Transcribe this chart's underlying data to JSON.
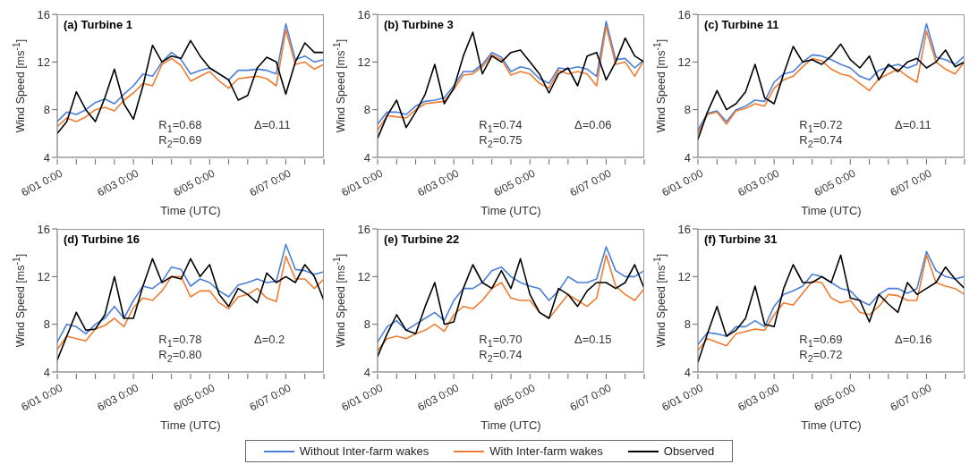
{
  "chart_data": [
    {
      "type": "line",
      "title": "(a) Turbine 1",
      "xlabel": "Time (UTC)",
      "ylabel": "Wind Speed [ms$^{-1}$]",
      "xlim": [
        "--06-01T00:00",
        "--06-08T00:00"
      ],
      "xticks": [
        {
          "value": "--06-01T00:00",
          "label": "6/01 0:00"
        },
        {
          "value": "--06-01T12:00",
          "label": null
        },
        {
          "value": "--06-02T00:00",
          "label": null
        },
        {
          "value": "--06-02T12:00",
          "label": null
        },
        {
          "value": "--06-03T00:00",
          "label": "6/03 0:00"
        },
        {
          "value": "--06-03T12:00",
          "label": null
        },
        {
          "value": "--06-04T00:00",
          "label": null
        },
        {
          "value": "--06-04T12:00",
          "label": null
        },
        {
          "value": "--06-05T00:00",
          "label": "6/05 0:00"
        },
        {
          "value": "--06-05T12:00",
          "label": null
        },
        {
          "value": "--06-06T00:00",
          "label": null
        },
        {
          "value": "--06-06T12:00",
          "label": null
        },
        {
          "value": "--06-07T00:00",
          "label": "6/07 0:00"
        },
        {
          "value": "--06-07T12:00",
          "label": null
        },
        {
          "value": "--06-08T00:00",
          "label": null
        }
      ],
      "ylim": [
        4,
        16
      ],
      "yticks": [
        4,
        8,
        12,
        16
      ],
      "annotations": [
        "R$_{1}$=0.68",
        "R$_{2}$=0.69",
        "Δ=0.11"
      ],
      "x": [
        "--06-01T00:00",
        "--06-01T06:00",
        "--06-01T12:00",
        "--06-01T18:00",
        "--06-02T00:00",
        "--06-02T06:00",
        "--06-02T12:00",
        "--06-02T18:00",
        "--06-03T00:00",
        "--06-03T06:00",
        "--06-03T12:00",
        "--06-03T18:00",
        "--06-04T00:00",
        "--06-04T06:00",
        "--06-04T12:00",
        "--06-04T18:00",
        "--06-05T00:00",
        "--06-05T06:00",
        "--06-05T12:00",
        "--06-05T18:00",
        "--06-06T00:00",
        "--06-06T06:00",
        "--06-06T12:00",
        "--06-06T18:00",
        "--06-07T00:00",
        "--06-07T06:00",
        "--06-07T12:00",
        "--06-07T18:00",
        "--06-08T00:00"
      ],
      "series": [
        {
          "color": "#4a7fd8",
          "values": [
            7.0,
            7.8,
            7.6,
            8.0,
            8.6,
            8.9,
            8.5,
            9.3,
            10.0,
            11.0,
            10.8,
            12.0,
            12.8,
            12.2,
            11.0,
            11.3,
            11.5,
            11.0,
            10.5,
            11.3,
            11.3,
            11.4,
            11.3,
            11.0,
            15.2,
            12.2,
            12.5,
            12.0,
            12.2
          ]
        },
        {
          "color": "#ee7d31",
          "values": [
            6.6,
            7.3,
            7.0,
            7.4,
            8.0,
            8.2,
            7.9,
            8.8,
            9.4,
            10.2,
            10.0,
            11.8,
            12.3,
            11.7,
            10.4,
            10.8,
            11.2,
            10.4,
            9.8,
            10.6,
            10.7,
            10.8,
            10.6,
            10.0,
            14.7,
            11.8,
            12.0,
            11.4,
            11.8
          ]
        },
        {
          "color": "#000000",
          "values": [
            6.0,
            7.0,
            9.5,
            8.0,
            7.0,
            9.0,
            11.4,
            8.5,
            7.2,
            10.0,
            13.4,
            12.0,
            12.5,
            12.3,
            13.8,
            12.5,
            11.5,
            11.0,
            10.5,
            8.8,
            9.2,
            11.5,
            12.4,
            12.0,
            9.3,
            12.0,
            13.6,
            12.8,
            12.8
          ]
        }
      ]
    },
    {
      "type": "line",
      "title": "(b) Turbine 3",
      "xlabel": "Time (UTC)",
      "ylabel": "Wind Speed [ms$^{-1}$]",
      "xlim": [
        "--06-01T00:00",
        "--06-08T00:00"
      ],
      "xticks": [
        {
          "value": "--06-01T00:00",
          "label": "6/01 0:00"
        },
        {
          "value": "--06-01T12:00",
          "label": null
        },
        {
          "value": "--06-02T00:00",
          "label": null
        },
        {
          "value": "--06-02T12:00",
          "label": null
        },
        {
          "value": "--06-03T00:00",
          "label": "6/03 0:00"
        },
        {
          "value": "--06-03T12:00",
          "label": null
        },
        {
          "value": "--06-04T00:00",
          "label": null
        },
        {
          "value": "--06-04T12:00",
          "label": null
        },
        {
          "value": "--06-05T00:00",
          "label": "6/05 0:00"
        },
        {
          "value": "--06-05T12:00",
          "label": null
        },
        {
          "value": "--06-06T00:00",
          "label": null
        },
        {
          "value": "--06-06T12:00",
          "label": null
        },
        {
          "value": "--06-07T00:00",
          "label": "6/07 0:00"
        },
        {
          "value": "--06-07T12:00",
          "label": null
        },
        {
          "value": "--06-08T00:00",
          "label": null
        }
      ],
      "ylim": [
        4,
        16
      ],
      "yticks": [
        4,
        8,
        12,
        16
      ],
      "annotations": [
        "R$_{1}$=0.74",
        "R$_{2}$=0.75",
        "Δ=0.06"
      ],
      "x": [
        "--06-01T00:00",
        "--06-01T06:00",
        "--06-01T12:00",
        "--06-01T18:00",
        "--06-02T00:00",
        "--06-02T06:00",
        "--06-02T12:00",
        "--06-02T18:00",
        "--06-03T00:00",
        "--06-03T06:00",
        "--06-03T12:00",
        "--06-03T18:00",
        "--06-04T00:00",
        "--06-04T06:00",
        "--06-04T12:00",
        "--06-04T18:00",
        "--06-05T00:00",
        "--06-05T06:00",
        "--06-05T12:00",
        "--06-05T18:00",
        "--06-06T00:00",
        "--06-06T06:00",
        "--06-06T12:00",
        "--06-06T18:00",
        "--06-07T00:00",
        "--06-07T06:00",
        "--06-07T12:00",
        "--06-07T18:00",
        "--06-08T00:00"
      ],
      "series": [
        {
          "color": "#4a7fd8",
          "values": [
            6.8,
            7.8,
            7.8,
            7.6,
            8.3,
            8.7,
            8.8,
            9.0,
            10.0,
            11.2,
            11.2,
            11.8,
            12.8,
            12.4,
            11.2,
            11.6,
            11.4,
            10.6,
            10.2,
            11.5,
            11.4,
            11.6,
            11.4,
            10.8,
            15.4,
            12.2,
            12.3,
            11.5,
            12.2
          ]
        },
        {
          "color": "#ee7d31",
          "values": [
            6.3,
            7.5,
            7.4,
            7.3,
            8.0,
            8.5,
            8.6,
            8.7,
            9.7,
            10.9,
            11.0,
            11.6,
            12.6,
            12.2,
            10.9,
            11.2,
            11.0,
            10.2,
            9.8,
            11.3,
            11.0,
            11.2,
            11.0,
            10.0,
            15.0,
            11.8,
            12.0,
            10.8,
            12.2
          ]
        },
        {
          "color": "#000000",
          "values": [
            5.6,
            7.5,
            8.8,
            6.5,
            7.8,
            9.3,
            11.8,
            8.5,
            9.8,
            12.5,
            14.5,
            11.0,
            12.5,
            12.0,
            12.8,
            13.0,
            12.0,
            11.0,
            9.4,
            11.0,
            11.5,
            10.0,
            12.5,
            12.8,
            10.5,
            12.0,
            14.0,
            12.5,
            12.0
          ]
        }
      ]
    },
    {
      "type": "line",
      "title": "(c) Turbine 11",
      "xlabel": "Time (UTC)",
      "ylabel": "Wind Speed [ms$^{-1}$]",
      "xlim": [
        "--06-01T00:00",
        "--06-08T00:00"
      ],
      "xticks": [
        {
          "value": "--06-01T00:00",
          "label": "6/01 0:00"
        },
        {
          "value": "--06-01T12:00",
          "label": null
        },
        {
          "value": "--06-02T00:00",
          "label": null
        },
        {
          "value": "--06-02T12:00",
          "label": null
        },
        {
          "value": "--06-03T00:00",
          "label": "6/03 0:00"
        },
        {
          "value": "--06-03T12:00",
          "label": null
        },
        {
          "value": "--06-04T00:00",
          "label": null
        },
        {
          "value": "--06-04T12:00",
          "label": null
        },
        {
          "value": "--06-05T00:00",
          "label": "6/05 0:00"
        },
        {
          "value": "--06-05T12:00",
          "label": null
        },
        {
          "value": "--06-06T00:00",
          "label": null
        },
        {
          "value": "--06-06T12:00",
          "label": null
        },
        {
          "value": "--06-07T00:00",
          "label": "6/07 0:00"
        },
        {
          "value": "--06-07T12:00",
          "label": null
        },
        {
          "value": "--06-08T00:00",
          "label": null
        }
      ],
      "ylim": [
        4,
        16
      ],
      "yticks": [
        4,
        8,
        12,
        16
      ],
      "annotations": [
        "R$_{1}$=0.72",
        "R$_{2}$=0.74",
        "Δ=0.11"
      ],
      "x": [
        "--06-01T00:00",
        "--06-01T06:00",
        "--06-01T12:00",
        "--06-01T18:00",
        "--06-02T00:00",
        "--06-02T06:00",
        "--06-02T12:00",
        "--06-02T18:00",
        "--06-03T00:00",
        "--06-03T06:00",
        "--06-03T12:00",
        "--06-03T18:00",
        "--06-04T00:00",
        "--06-04T06:00",
        "--06-04T12:00",
        "--06-04T18:00",
        "--06-05T00:00",
        "--06-05T06:00",
        "--06-05T12:00",
        "--06-05T18:00",
        "--06-06T00:00",
        "--06-06T06:00",
        "--06-06T12:00",
        "--06-06T18:00",
        "--06-07T00:00",
        "--06-07T06:00",
        "--06-07T12:00",
        "--06-07T18:00",
        "--06-08T00:00"
      ],
      "series": [
        {
          "color": "#4a7fd8",
          "values": [
            6.3,
            7.7,
            7.9,
            7.0,
            8.0,
            8.3,
            8.8,
            8.7,
            10.3,
            11.0,
            11.2,
            12.0,
            12.6,
            12.5,
            12.2,
            11.8,
            11.5,
            10.8,
            10.5,
            11.3,
            11.6,
            11.8,
            11.5,
            11.8,
            15.2,
            12.4,
            12.2,
            11.8,
            12.5
          ]
        },
        {
          "color": "#ee7d31",
          "values": [
            6.0,
            7.6,
            7.8,
            6.8,
            7.9,
            8.1,
            8.5,
            8.3,
            9.8,
            10.5,
            10.8,
            11.6,
            12.3,
            12.1,
            11.4,
            11.0,
            10.8,
            10.2,
            9.6,
            10.6,
            11.0,
            11.4,
            10.8,
            10.3,
            14.6,
            12.0,
            11.4,
            11.0,
            12.0
          ]
        },
        {
          "color": "#000000",
          "values": [
            5.5,
            7.8,
            9.6,
            8.0,
            8.5,
            9.5,
            11.8,
            9.0,
            8.5,
            11.0,
            13.3,
            12.0,
            12.2,
            11.8,
            12.5,
            13.5,
            12.2,
            11.5,
            12.5,
            10.5,
            11.8,
            11.2,
            12.0,
            12.3,
            11.5,
            12.0,
            13.0,
            11.6,
            12.0
          ]
        }
      ]
    },
    {
      "type": "line",
      "title": "(d) Turbine 16",
      "xlabel": "Time (UTC)",
      "ylabel": "Wind Speed [ms$^{-1}$]",
      "xlim": [
        "--06-01T00:00",
        "--06-08T00:00"
      ],
      "xticks": [
        {
          "value": "--06-01T00:00",
          "label": "6/01 0:00"
        },
        {
          "value": "--06-01T12:00",
          "label": null
        },
        {
          "value": "--06-02T00:00",
          "label": null
        },
        {
          "value": "--06-02T12:00",
          "label": null
        },
        {
          "value": "--06-03T00:00",
          "label": "6/03 0:00"
        },
        {
          "value": "--06-03T12:00",
          "label": null
        },
        {
          "value": "--06-04T00:00",
          "label": null
        },
        {
          "value": "--06-04T12:00",
          "label": null
        },
        {
          "value": "--06-05T00:00",
          "label": "6/05 0:00"
        },
        {
          "value": "--06-05T12:00",
          "label": null
        },
        {
          "value": "--06-06T00:00",
          "label": null
        },
        {
          "value": "--06-06T12:00",
          "label": null
        },
        {
          "value": "--06-07T00:00",
          "label": "6/07 0:00"
        },
        {
          "value": "--06-07T12:00",
          "label": null
        },
        {
          "value": "--06-08T00:00",
          "label": null
        }
      ],
      "ylim": [
        4,
        16
      ],
      "yticks": [
        4,
        8,
        12,
        16
      ],
      "annotations": [
        "R$_{1}$=0.78",
        "R$_{2}$=0.80",
        "Δ=0.2"
      ],
      "x": [
        "--06-01T00:00",
        "--06-01T06:00",
        "--06-01T12:00",
        "--06-01T18:00",
        "--06-02T00:00",
        "--06-02T06:00",
        "--06-02T12:00",
        "--06-02T18:00",
        "--06-03T00:00",
        "--06-03T06:00",
        "--06-03T12:00",
        "--06-03T18:00",
        "--06-04T00:00",
        "--06-04T06:00",
        "--06-04T12:00",
        "--06-04T18:00",
        "--06-05T00:00",
        "--06-05T06:00",
        "--06-05T12:00",
        "--06-05T18:00",
        "--06-06T00:00",
        "--06-06T06:00",
        "--06-06T12:00",
        "--06-06T18:00",
        "--06-07T00:00",
        "--06-07T06:00",
        "--06-07T12:00",
        "--06-07T18:00",
        "--06-08T00:00"
      ],
      "series": [
        {
          "color": "#4a7fd8",
          "values": [
            6.5,
            8.0,
            7.8,
            7.2,
            8.0,
            8.5,
            9.5,
            8.5,
            10.0,
            11.2,
            11.0,
            11.6,
            12.8,
            12.6,
            11.2,
            11.8,
            11.5,
            10.8,
            10.3,
            11.3,
            11.5,
            11.8,
            11.5,
            11.6,
            14.7,
            12.6,
            12.5,
            12.2,
            12.4
          ]
        },
        {
          "color": "#ee7d31",
          "values": [
            5.9,
            7.0,
            6.8,
            6.6,
            7.6,
            7.9,
            8.5,
            7.8,
            9.4,
            10.2,
            10.0,
            10.8,
            12.0,
            12.0,
            10.3,
            10.8,
            10.8,
            9.8,
            9.3,
            10.3,
            10.5,
            11.0,
            10.2,
            9.9,
            13.7,
            11.8,
            11.8,
            11.0,
            11.8
          ]
        },
        {
          "color": "#000000",
          "values": [
            5.0,
            7.0,
            9.0,
            7.5,
            7.6,
            8.8,
            12.0,
            8.5,
            8.5,
            11.2,
            13.5,
            11.5,
            12.0,
            11.8,
            13.5,
            12.0,
            13.0,
            10.5,
            9.5,
            11.0,
            10.5,
            9.8,
            12.3,
            11.5,
            12.0,
            11.5,
            13.0,
            12.0,
            10.0
          ]
        }
      ]
    },
    {
      "type": "line",
      "title": "(e) Turbine 22",
      "xlabel": "Time (UTC)",
      "ylabel": "Wind Speed [ms$^{-1}$]",
      "xlim": [
        "--06-01T00:00",
        "--06-08T00:00"
      ],
      "xticks": [
        {
          "value": "--06-01T00:00",
          "label": "6/01 0:00"
        },
        {
          "value": "--06-01T12:00",
          "label": null
        },
        {
          "value": "--06-02T00:00",
          "label": null
        },
        {
          "value": "--06-02T12:00",
          "label": null
        },
        {
          "value": "--06-03T00:00",
          "label": "6/03 0:00"
        },
        {
          "value": "--06-03T12:00",
          "label": null
        },
        {
          "value": "--06-04T00:00",
          "label": null
        },
        {
          "value": "--06-04T12:00",
          "label": null
        },
        {
          "value": "--06-05T00:00",
          "label": "6/05 0:00"
        },
        {
          "value": "--06-05T12:00",
          "label": null
        },
        {
          "value": "--06-06T00:00",
          "label": null
        },
        {
          "value": "--06-06T12:00",
          "label": null
        },
        {
          "value": "--06-07T00:00",
          "label": "6/07 0:00"
        },
        {
          "value": "--06-07T12:00",
          "label": null
        },
        {
          "value": "--06-08T00:00",
          "label": null
        }
      ],
      "ylim": [
        4,
        16
      ],
      "yticks": [
        4,
        8,
        12,
        16
      ],
      "annotations": [
        "R$_{1}$=0.70",
        "R$_{2}$=0.74",
        "Δ=0.15"
      ],
      "x": [
        "--06-01T00:00",
        "--06-01T06:00",
        "--06-01T12:00",
        "--06-01T18:00",
        "--06-02T00:00",
        "--06-02T06:00",
        "--06-02T12:00",
        "--06-02T18:00",
        "--06-03T00:00",
        "--06-03T06:00",
        "--06-03T12:00",
        "--06-03T18:00",
        "--06-04T00:00",
        "--06-04T06:00",
        "--06-04T12:00",
        "--06-04T18:00",
        "--06-05T00:00",
        "--06-05T06:00",
        "--06-05T12:00",
        "--06-05T18:00",
        "--06-06T00:00",
        "--06-06T06:00",
        "--06-06T12:00",
        "--06-06T18:00",
        "--06-07T00:00",
        "--06-07T06:00",
        "--06-07T12:00",
        "--06-07T18:00",
        "--06-08T00:00"
      ],
      "series": [
        {
          "color": "#4a7fd8",
          "values": [
            6.5,
            7.8,
            8.3,
            7.5,
            8.0,
            8.5,
            9.0,
            8.3,
            10.0,
            11.0,
            11.0,
            11.5,
            12.5,
            12.8,
            12.0,
            11.5,
            11.2,
            11.0,
            10.0,
            10.8,
            12.0,
            11.5,
            11.5,
            11.8,
            14.5,
            12.5,
            12.0,
            12.0,
            12.5
          ]
        },
        {
          "color": "#ee7d31",
          "values": [
            5.8,
            6.8,
            7.0,
            6.8,
            7.2,
            7.5,
            8.0,
            7.4,
            8.8,
            9.5,
            9.3,
            10.0,
            11.0,
            11.5,
            10.2,
            10.0,
            10.0,
            9.0,
            8.5,
            9.5,
            10.5,
            10.0,
            9.5,
            10.2,
            13.8,
            11.2,
            10.5,
            10.0,
            11.0
          ]
        },
        {
          "color": "#000000",
          "values": [
            5.3,
            7.2,
            8.8,
            7.5,
            7.2,
            9.5,
            11.5,
            8.0,
            8.2,
            11.0,
            13.0,
            11.5,
            11.0,
            12.5,
            11.0,
            13.5,
            10.5,
            9.0,
            8.5,
            11.0,
            10.5,
            9.5,
            10.8,
            11.5,
            11.5,
            11.0,
            11.5,
            13.0,
            11.0
          ]
        }
      ]
    },
    {
      "type": "line",
      "title": "(f) Turbine 31",
      "xlabel": "Time (UTC)",
      "ylabel": "Wind Speed [ms$^{-1}$]",
      "xlim": [
        "--06-01T00:00",
        "--06-08T00:00"
      ],
      "xticks": [
        {
          "value": "--06-01T00:00",
          "label": "6/01 0:00"
        },
        {
          "value": "--06-01T12:00",
          "label": null
        },
        {
          "value": "--06-02T00:00",
          "label": null
        },
        {
          "value": "--06-02T12:00",
          "label": null
        },
        {
          "value": "--06-03T00:00",
          "label": "6/03 0:00"
        },
        {
          "value": "--06-03T12:00",
          "label": null
        },
        {
          "value": "--06-04T00:00",
          "label": null
        },
        {
          "value": "--06-04T12:00",
          "label": null
        },
        {
          "value": "--06-05T00:00",
          "label": "6/05 0:00"
        },
        {
          "value": "--06-05T12:00",
          "label": null
        },
        {
          "value": "--06-06T00:00",
          "label": null
        },
        {
          "value": "--06-06T12:00",
          "label": null
        },
        {
          "value": "--06-07T00:00",
          "label": "6/07 0:00"
        },
        {
          "value": "--06-07T12:00",
          "label": null
        },
        {
          "value": "--06-08T00:00",
          "label": null
        }
      ],
      "ylim": [
        4,
        16
      ],
      "yticks": [
        4,
        8,
        12,
        16
      ],
      "annotations": [
        "R$_{1}$=0.69",
        "R$_{2}$=0.72",
        "Δ=0.16"
      ],
      "legend": "bottom",
      "x": [
        "--06-01T00:00",
        "--06-01T06:00",
        "--06-01T12:00",
        "--06-01T18:00",
        "--06-02T00:00",
        "--06-02T06:00",
        "--06-02T12:00",
        "--06-02T18:00",
        "--06-03T00:00",
        "--06-03T06:00",
        "--06-03T12:00",
        "--06-03T18:00",
        "--06-04T00:00",
        "--06-04T06:00",
        "--06-04T12:00",
        "--06-04T18:00",
        "--06-05T00:00",
        "--06-05T06:00",
        "--06-05T12:00",
        "--06-05T18:00",
        "--06-06T00:00",
        "--06-06T06:00",
        "--06-06T12:00",
        "--06-06T18:00",
        "--06-07T00:00",
        "--06-07T06:00",
        "--06-07T12:00",
        "--06-07T18:00",
        "--06-08T00:00"
      ],
      "series": [
        {
          "name": "Without Inter-farm wakes",
          "color": "#4a7fd8",
          "values": [
            6.3,
            7.3,
            7.2,
            7.0,
            7.8,
            7.8,
            8.3,
            7.8,
            9.5,
            10.5,
            10.8,
            11.2,
            12.2,
            12.0,
            11.5,
            11.0,
            10.8,
            10.0,
            9.6,
            10.5,
            11.0,
            11.0,
            10.6,
            11.0,
            14.1,
            12.5,
            12.0,
            11.8,
            12.0
          ]
        },
        {
          "name": "With Inter-farm wakes",
          "color": "#ee7d31",
          "values": [
            5.8,
            6.8,
            6.5,
            6.2,
            7.2,
            7.4,
            7.6,
            7.5,
            8.8,
            9.8,
            9.6,
            10.6,
            11.6,
            11.5,
            10.2,
            9.8,
            10.0,
            9.0,
            8.8,
            9.5,
            10.5,
            10.4,
            10.0,
            10.0,
            13.8,
            11.5,
            11.2,
            11.0,
            10.5
          ]
        },
        {
          "name": "Observed",
          "color": "#000000",
          "values": [
            4.8,
            7.2,
            9.5,
            7.0,
            7.5,
            8.5,
            11.2,
            8.0,
            7.8,
            11.0,
            13.0,
            11.5,
            11.5,
            12.0,
            11.5,
            13.8,
            10.2,
            10.0,
            8.2,
            10.5,
            9.7,
            9.0,
            11.5,
            10.5,
            11.0,
            11.5,
            12.8,
            11.8,
            11.0
          ]
        }
      ]
    }
  ]
}
